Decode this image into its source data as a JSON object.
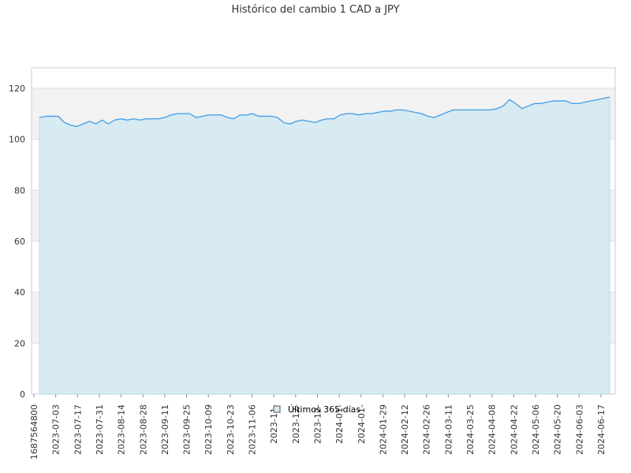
{
  "chart_data": {
    "type": "area",
    "title": "Histórico del cambio 1 CAD a JPY",
    "xlabel": "",
    "ylabel": "",
    "ylim": [
      0,
      128
    ],
    "yticks": [
      0,
      20,
      40,
      60,
      80,
      100,
      120
    ],
    "x_tick_labels": [
      "1687564800",
      "2023-07-03",
      "2023-07-17",
      "2023-07-31",
      "2023-08-14",
      "2023-08-28",
      "2023-09-11",
      "2023-09-25",
      "2023-10-09",
      "2023-10-23",
      "2023-11-06",
      "2023-11-",
      "2023-12-",
      "2023-12-",
      "2024-01-",
      "2024-01-",
      "2024-01-29",
      "2024-02-12",
      "2024-02-26",
      "2024-03-11",
      "2024-03-25",
      "2024-04-08",
      "2024-04-22",
      "2024-05-06",
      "2024-05-20",
      "2024-06-03",
      "2024-06-17"
    ],
    "grid": true,
    "legend_position": "bottom-center",
    "series": [
      {
        "name": "Últimos 365 días",
        "line_color": "#4aa3e8",
        "fill_color": "#d6e9f1",
        "x": [
          "2023-06-24",
          "2023-06-28",
          "2023-07-02",
          "2023-07-06",
          "2023-07-10",
          "2023-07-14",
          "2023-07-18",
          "2023-07-22",
          "2023-07-26",
          "2023-07-30",
          "2023-08-03",
          "2023-08-07",
          "2023-08-11",
          "2023-08-15",
          "2023-08-19",
          "2023-08-23",
          "2023-08-27",
          "2023-08-31",
          "2023-09-04",
          "2023-09-08",
          "2023-09-12",
          "2023-09-16",
          "2023-09-20",
          "2023-09-24",
          "2023-09-28",
          "2023-10-02",
          "2023-10-06",
          "2023-10-10",
          "2023-10-14",
          "2023-10-18",
          "2023-10-22",
          "2023-10-26",
          "2023-10-30",
          "2023-11-03",
          "2023-11-07",
          "2023-11-11",
          "2023-11-15",
          "2023-11-19",
          "2023-11-23",
          "2023-11-27",
          "2023-12-01",
          "2023-12-05",
          "2023-12-09",
          "2023-12-13",
          "2023-12-17",
          "2023-12-21",
          "2023-12-25",
          "2023-12-29",
          "2024-01-02",
          "2024-01-06",
          "2024-01-10",
          "2024-01-14",
          "2024-01-18",
          "2024-01-22",
          "2024-01-26",
          "2024-01-30",
          "2024-02-03",
          "2024-02-07",
          "2024-02-11",
          "2024-02-15",
          "2024-02-19",
          "2024-02-23",
          "2024-02-27",
          "2024-03-02",
          "2024-03-06",
          "2024-03-10",
          "2024-03-14",
          "2024-03-18",
          "2024-03-22",
          "2024-03-26",
          "2024-03-30",
          "2024-04-03",
          "2024-04-07",
          "2024-04-11",
          "2024-04-15",
          "2024-04-19",
          "2024-04-23",
          "2024-04-27",
          "2024-05-01",
          "2024-05-05",
          "2024-05-09",
          "2024-05-13",
          "2024-05-17",
          "2024-05-21",
          "2024-05-25",
          "2024-05-29",
          "2024-06-02",
          "2024-06-06",
          "2024-06-10",
          "2024-06-14",
          "2024-06-18",
          "2024-06-22"
        ],
        "values": [
          108.5,
          109,
          109,
          109,
          106.5,
          105.5,
          105,
          106,
          107,
          106,
          107.5,
          106,
          107.5,
          108,
          107.5,
          108,
          107.5,
          108,
          108,
          108,
          108.5,
          109.5,
          110,
          110,
          110,
          108.5,
          109,
          109.5,
          109.5,
          109.5,
          108.5,
          108,
          109.5,
          109.5,
          110,
          109,
          109,
          109,
          108.5,
          106.5,
          106,
          107,
          107.5,
          107,
          106.5,
          107.5,
          108,
          108,
          109.5,
          110,
          110,
          109.5,
          110,
          110,
          110.5,
          111,
          111,
          111.5,
          111.5,
          111,
          110.5,
          110,
          109,
          108.5,
          109.5,
          110.5,
          111.5,
          111.5,
          111.5,
          111.5,
          111.5,
          111.5,
          111.5,
          112,
          113,
          115.5,
          114,
          112,
          113,
          114,
          114,
          114.5,
          115,
          115,
          115,
          114,
          114,
          114.5,
          115,
          115.5,
          116,
          116.5
        ]
      }
    ]
  }
}
